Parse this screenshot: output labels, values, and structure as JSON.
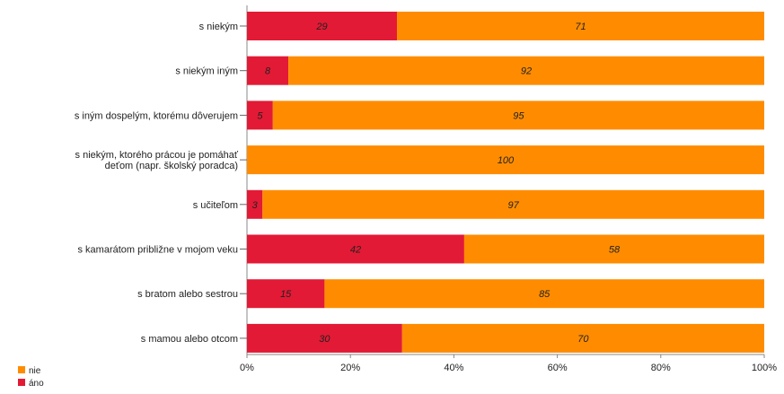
{
  "chart_data": {
    "type": "bar",
    "orientation": "horizontal",
    "stacked": true,
    "categories": [
      "s niekým",
      "s niekým iným",
      "s iným dospelým, ktorému dôverujem",
      [
        "s niekým, ktorého prácou je pomáhať",
        "deťom (napr. školský poradca)"
      ],
      "s učiteľom",
      "s kamarátom približne v mojom veku",
      "s bratom alebo sestrou",
      "s mamou alebo otcom"
    ],
    "series": [
      {
        "name": "áno",
        "color": "#e31a35",
        "values": [
          29,
          8,
          5,
          0,
          3,
          42,
          15,
          30
        ],
        "labels": [
          "29",
          "8",
          "5",
          "",
          "3",
          "42",
          "15",
          "30"
        ]
      },
      {
        "name": "nie",
        "color": "#ff8c00",
        "values": [
          71,
          92,
          95,
          100,
          97,
          58,
          85,
          70
        ],
        "labels": [
          "71",
          "92",
          "95",
          "100",
          "97",
          "58",
          "85",
          "70"
        ]
      }
    ],
    "xlim": [
      0,
      100
    ],
    "xticks": [
      "0%",
      "20%",
      "40%",
      "60%",
      "80%",
      "100%"
    ],
    "legend_position": "bottom-left",
    "legend": [
      {
        "name": "nie",
        "color": "#ff8c00"
      },
      {
        "name": "áno",
        "color": "#e31a35"
      }
    ]
  }
}
